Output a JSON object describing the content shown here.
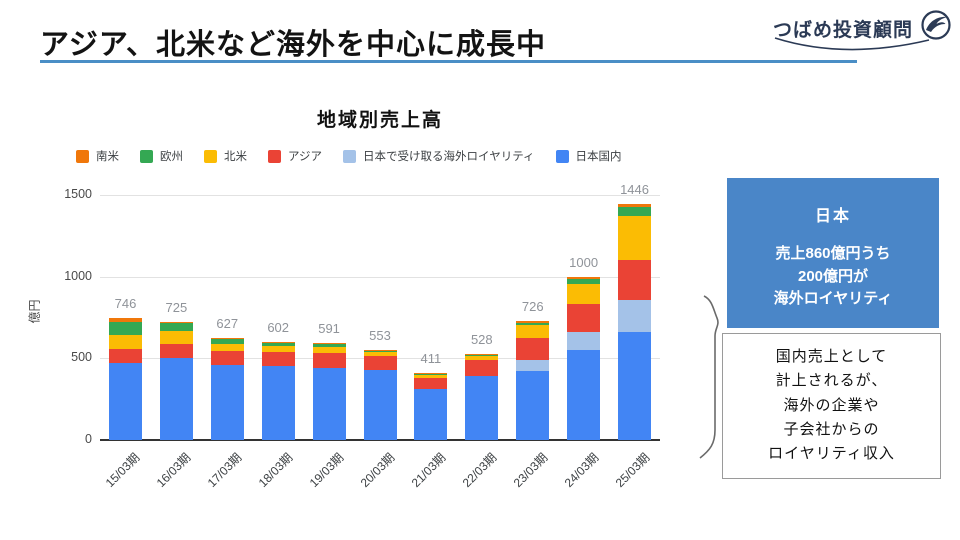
{
  "header": {
    "title": "アジア、北米など海外を中心に成長中"
  },
  "logo": {
    "text": "つばめ投資顧問",
    "icon": "swallow-bird-in-circle",
    "color": "#2b3a55"
  },
  "chart_data": {
    "type": "bar",
    "stacked": true,
    "title": "地域別売上高",
    "ylabel": "億円",
    "xlabel": "",
    "ylim": [
      0,
      1500
    ],
    "yticks": [
      0,
      500,
      1000,
      1500
    ],
    "grid": true,
    "legend_position": "top",
    "categories": [
      "15/03期",
      "16/03期",
      "17/03期",
      "18/03期",
      "19/03期",
      "20/03期",
      "21/03期",
      "22/03期",
      "23/03期",
      "24/03期",
      "25/03期"
    ],
    "series": [
      {
        "name": "日本国内",
        "color": "#4285F4",
        "values": [
          470,
          500,
          460,
          455,
          440,
          430,
          310,
          390,
          420,
          550,
          660
        ]
      },
      {
        "name": "日本で受け取る海外ロイヤリティ",
        "color": "#A4C2E8",
        "values": [
          0,
          0,
          0,
          0,
          0,
          0,
          0,
          0,
          72,
          110,
          200
        ]
      },
      {
        "name": "アジア",
        "color": "#EA4335",
        "values": [
          85,
          90,
          85,
          85,
          90,
          85,
          72,
          100,
          134,
          170,
          240
        ]
      },
      {
        "name": "北米",
        "color": "#FBBC04",
        "values": [
          85,
          75,
          45,
          37,
          37,
          22,
          16,
          26,
          78,
          125,
          270
        ]
      },
      {
        "name": "欧州",
        "color": "#34A853",
        "values": [
          85,
          50,
          30,
          20,
          19,
          12,
          10,
          9,
          15,
          33,
          56
        ]
      },
      {
        "name": "南米",
        "color": "#F0770A",
        "values": [
          21,
          10,
          7,
          5,
          5,
          4,
          3,
          3,
          7,
          12,
          20
        ]
      }
    ],
    "totals": [
      746,
      725,
      627,
      602,
      591,
      553,
      411,
      528,
      726,
      1000,
      1446
    ],
    "legend": [
      {
        "label": "南米",
        "color": "#F0770A"
      },
      {
        "label": "欧州",
        "color": "#34A853"
      },
      {
        "label": "北米",
        "color": "#FBBC04"
      },
      {
        "label": "アジア",
        "color": "#EA4335"
      },
      {
        "label": "日本で受け取る海外ロイヤリティ",
        "color": "#A4C2E8"
      },
      {
        "label": "日本国内",
        "color": "#4285F4"
      }
    ]
  },
  "callouts": {
    "blue_box": {
      "heading": "日本",
      "lines": [
        "売上860億円うち",
        "200億円が",
        "海外ロイヤリティ"
      ],
      "bg_color": "#4a86c8"
    },
    "white_box": {
      "lines": [
        "国内売上として",
        "計上されるが、",
        "海外の企業や",
        "子会社からの",
        "ロイヤリティ収入"
      ]
    }
  }
}
